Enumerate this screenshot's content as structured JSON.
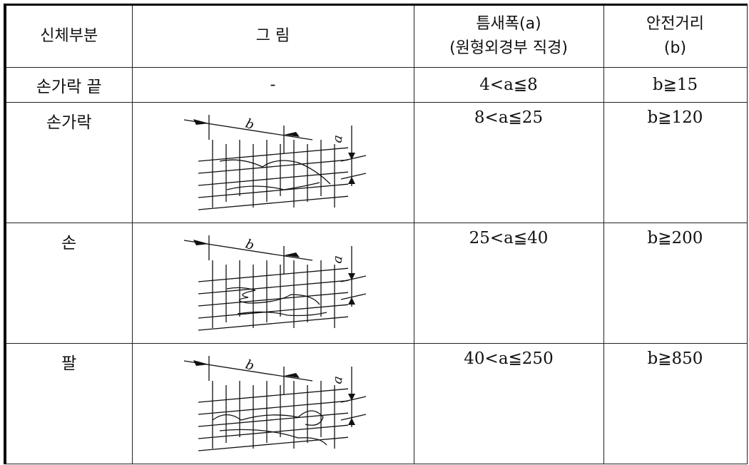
{
  "table": {
    "header": [
      [
        "신체부분"
      ],
      [
        "그 림"
      ],
      [
        "틈새폭(a)",
        "(원형외경부 직경)"
      ],
      [
        "안전거리",
        "(b)"
      ]
    ],
    "rows": [
      [
        "손가락 끝",
        "-",
        "4<a≦8",
        "b≧15"
      ],
      [
        "손가락",
        {
          "labels": [
            "b",
            "a"
          ]
        },
        "8<a≦25",
        "b≧120"
      ],
      [
        "손",
        {
          "labels": [
            "b",
            "a"
          ]
        },
        "25<a≦40",
        "b≧200"
      ],
      [
        "팔",
        {
          "labels": [
            "b",
            "a"
          ]
        },
        "40<a≦250",
        "b≧850"
      ]
    ]
  }
}
